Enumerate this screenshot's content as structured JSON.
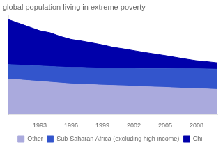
{
  "chart_data": {
    "type": "area",
    "title": "global population living in extreme poverty",
    "x": [
      1990,
      1991,
      1992,
      1993,
      1994,
      1995,
      1996,
      1997,
      1998,
      1999,
      2000,
      2001,
      2002,
      2003,
      2004,
      2005,
      2006,
      2007,
      2008,
      2009,
      2010
    ],
    "series": [
      {
        "name": "Other",
        "color": "#aaaadd",
        "values": [
          22,
          21.5,
          21,
          20.5,
          20,
          19.5,
          19,
          18.8,
          18.5,
          18.2,
          18,
          17.8,
          17.5,
          17.2,
          17,
          16.8,
          16.5,
          16.2,
          16,
          15.8,
          15.5
        ]
      },
      {
        "name": "Sub-Saharan Africa (excluding high income)",
        "color": "#3355cc",
        "values": [
          9,
          9.2,
          9.4,
          9.6,
          9.8,
          10,
          10.2,
          10.4,
          10.5,
          10.6,
          10.8,
          11,
          11.2,
          11.4,
          11.6,
          11.8,
          12,
          12.2,
          12.4,
          12.5,
          12.6
        ]
      },
      {
        "name": "Chi",
        "color": "#0000aa",
        "values": [
          28,
          26,
          24,
          22,
          21,
          19,
          17.5,
          16.5,
          15.5,
          14.5,
          13,
          12,
          11,
          10,
          9,
          8,
          7,
          6,
          5,
          4.5,
          4
        ]
      }
    ],
    "xlim": [
      1990,
      2010
    ],
    "xticks": [
      1993,
      1996,
      1999,
      2002,
      2005,
      2008
    ],
    "ylim": [
      0,
      62
    ],
    "yticks": [],
    "stacked": true,
    "grid": false,
    "legend": "bottom",
    "tick_labels": "x"
  }
}
